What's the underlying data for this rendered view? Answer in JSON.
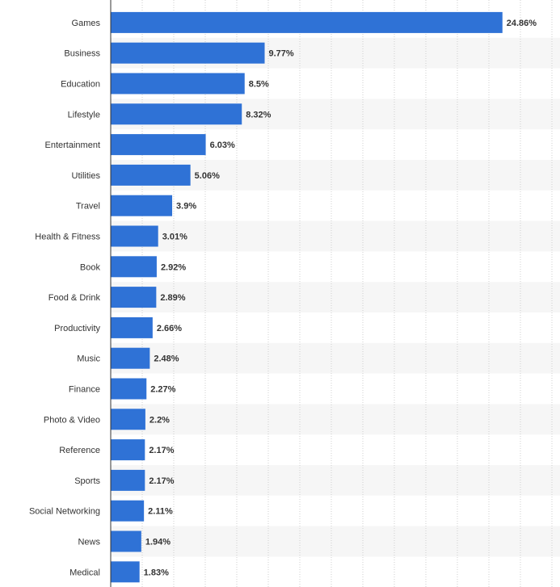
{
  "chart_data": {
    "type": "bar",
    "orientation": "horizontal",
    "categories": [
      "Games",
      "Business",
      "Education",
      "Lifestyle",
      "Entertainment",
      "Utilities",
      "Travel",
      "Health & Fitness",
      "Book",
      "Food & Drink",
      "Productivity",
      "Music",
      "Finance",
      "Photo & Video",
      "Reference",
      "Sports",
      "Social Networking",
      "News",
      "Medical"
    ],
    "values": [
      24.86,
      9.77,
      8.5,
      8.32,
      6.03,
      5.06,
      3.9,
      3.01,
      2.92,
      2.89,
      2.66,
      2.48,
      2.27,
      2.2,
      2.17,
      2.17,
      2.11,
      1.94,
      1.83
    ],
    "value_labels": [
      "24.86%",
      "9.77%",
      "8.5%",
      "8.32%",
      "6.03%",
      "5.06%",
      "3.9%",
      "3.01%",
      "2.92%",
      "2.89%",
      "2.66%",
      "2.48%",
      "2.27%",
      "2.2%",
      "2.17%",
      "2.17%",
      "2.11%",
      "1.94%",
      "1.83%"
    ],
    "unit": "%",
    "xlim": [
      0,
      28
    ],
    "grid": true,
    "bar_color": "#2f72d6",
    "alt_row_color": "#f6f6f6"
  }
}
